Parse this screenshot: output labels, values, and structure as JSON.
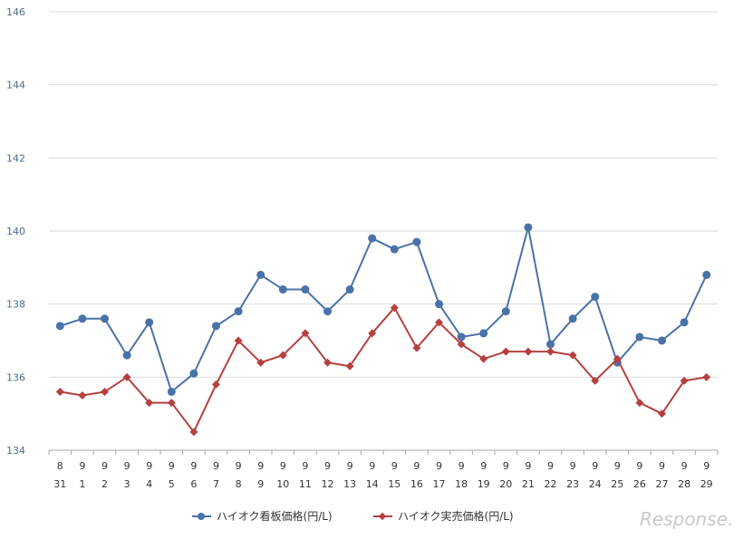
{
  "chart_data": {
    "type": "line",
    "x_month": [
      "8",
      "9",
      "9",
      "9",
      "9",
      "9",
      "9",
      "9",
      "9",
      "9",
      "9",
      "9",
      "9",
      "9",
      "9",
      "9",
      "9",
      "9",
      "9",
      "9",
      "9",
      "9",
      "9",
      "9",
      "9",
      "9",
      "9",
      "9",
      "9",
      "9"
    ],
    "x_day": [
      "31",
      "1",
      "2",
      "3",
      "4",
      "5",
      "6",
      "7",
      "8",
      "9",
      "10",
      "11",
      "12",
      "13",
      "14",
      "15",
      "16",
      "17",
      "18",
      "19",
      "20",
      "21",
      "22",
      "23",
      "24",
      "25",
      "26",
      "27",
      "28",
      "29"
    ],
    "ylim": [
      134,
      146
    ],
    "yticks": [
      "134",
      "136",
      "138",
      "140",
      "142",
      "144",
      "146"
    ],
    "grid": true,
    "legend": "bottom-center",
    "series": [
      {
        "name": "ハイオク看板価格(円/L)",
        "color": "#4a72a8",
        "marker": "circle",
        "values": [
          137.4,
          137.6,
          137.6,
          136.6,
          137.5,
          135.6,
          136.1,
          137.4,
          137.8,
          138.8,
          138.4,
          138.4,
          137.8,
          138.4,
          139.8,
          139.5,
          139.7,
          138.0,
          137.1,
          137.2,
          137.8,
          140.1,
          136.9,
          137.6,
          138.2,
          136.4,
          137.1,
          137.0,
          137.5,
          138.8
        ]
      },
      {
        "name": "ハイオク実売価格(円/L)",
        "color": "#b5403f",
        "marker": "diamond",
        "values": [
          135.6,
          135.5,
          135.6,
          136.0,
          135.3,
          135.3,
          134.5,
          135.8,
          137.0,
          136.4,
          136.6,
          137.2,
          136.4,
          136.3,
          137.2,
          137.9,
          136.8,
          137.5,
          136.9,
          136.5,
          136.7,
          136.7,
          136.7,
          136.6,
          135.9,
          136.5,
          135.3,
          135.0,
          135.9,
          136.0
        ]
      }
    ]
  },
  "watermark": "Response."
}
